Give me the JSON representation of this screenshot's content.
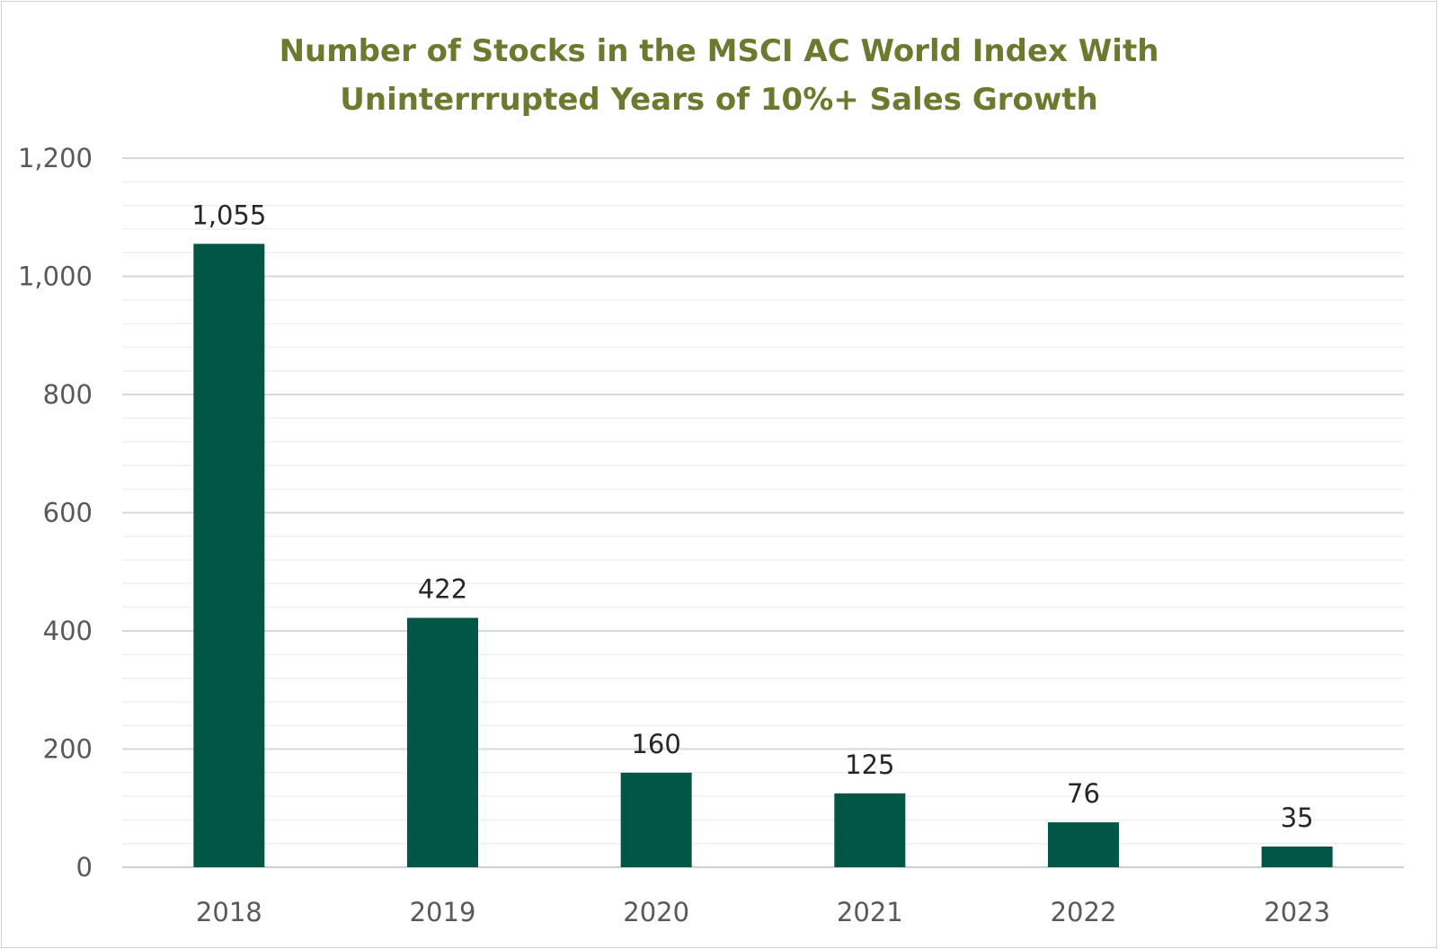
{
  "chart_data": {
    "type": "bar",
    "title_lines": [
      "Number of Stocks in the MSCI AC World Index With",
      "Uninterrrupted Years of 10%+ Sales Growth"
    ],
    "categories": [
      "2018",
      "2019",
      "2020",
      "2021",
      "2022",
      "2023"
    ],
    "values": [
      1055,
      422,
      160,
      125,
      76,
      35
    ],
    "value_labels": [
      "1,055",
      "422",
      "160",
      "125",
      "76",
      "35"
    ],
    "ylim": [
      0,
      1200
    ],
    "y_ticks": [
      0,
      200,
      400,
      600,
      800,
      1000,
      1200
    ],
    "y_tick_labels": [
      "0",
      "200",
      "400",
      "600",
      "800",
      "1,000",
      "1,200"
    ],
    "minor_gridlines": true,
    "legend": "none",
    "xlabel": "",
    "ylabel": "",
    "colors": {
      "bar": "#025645",
      "title": "#6b7a2e",
      "major_grid": "#d9d9d9",
      "minor_grid": "#f0f0f0"
    }
  }
}
